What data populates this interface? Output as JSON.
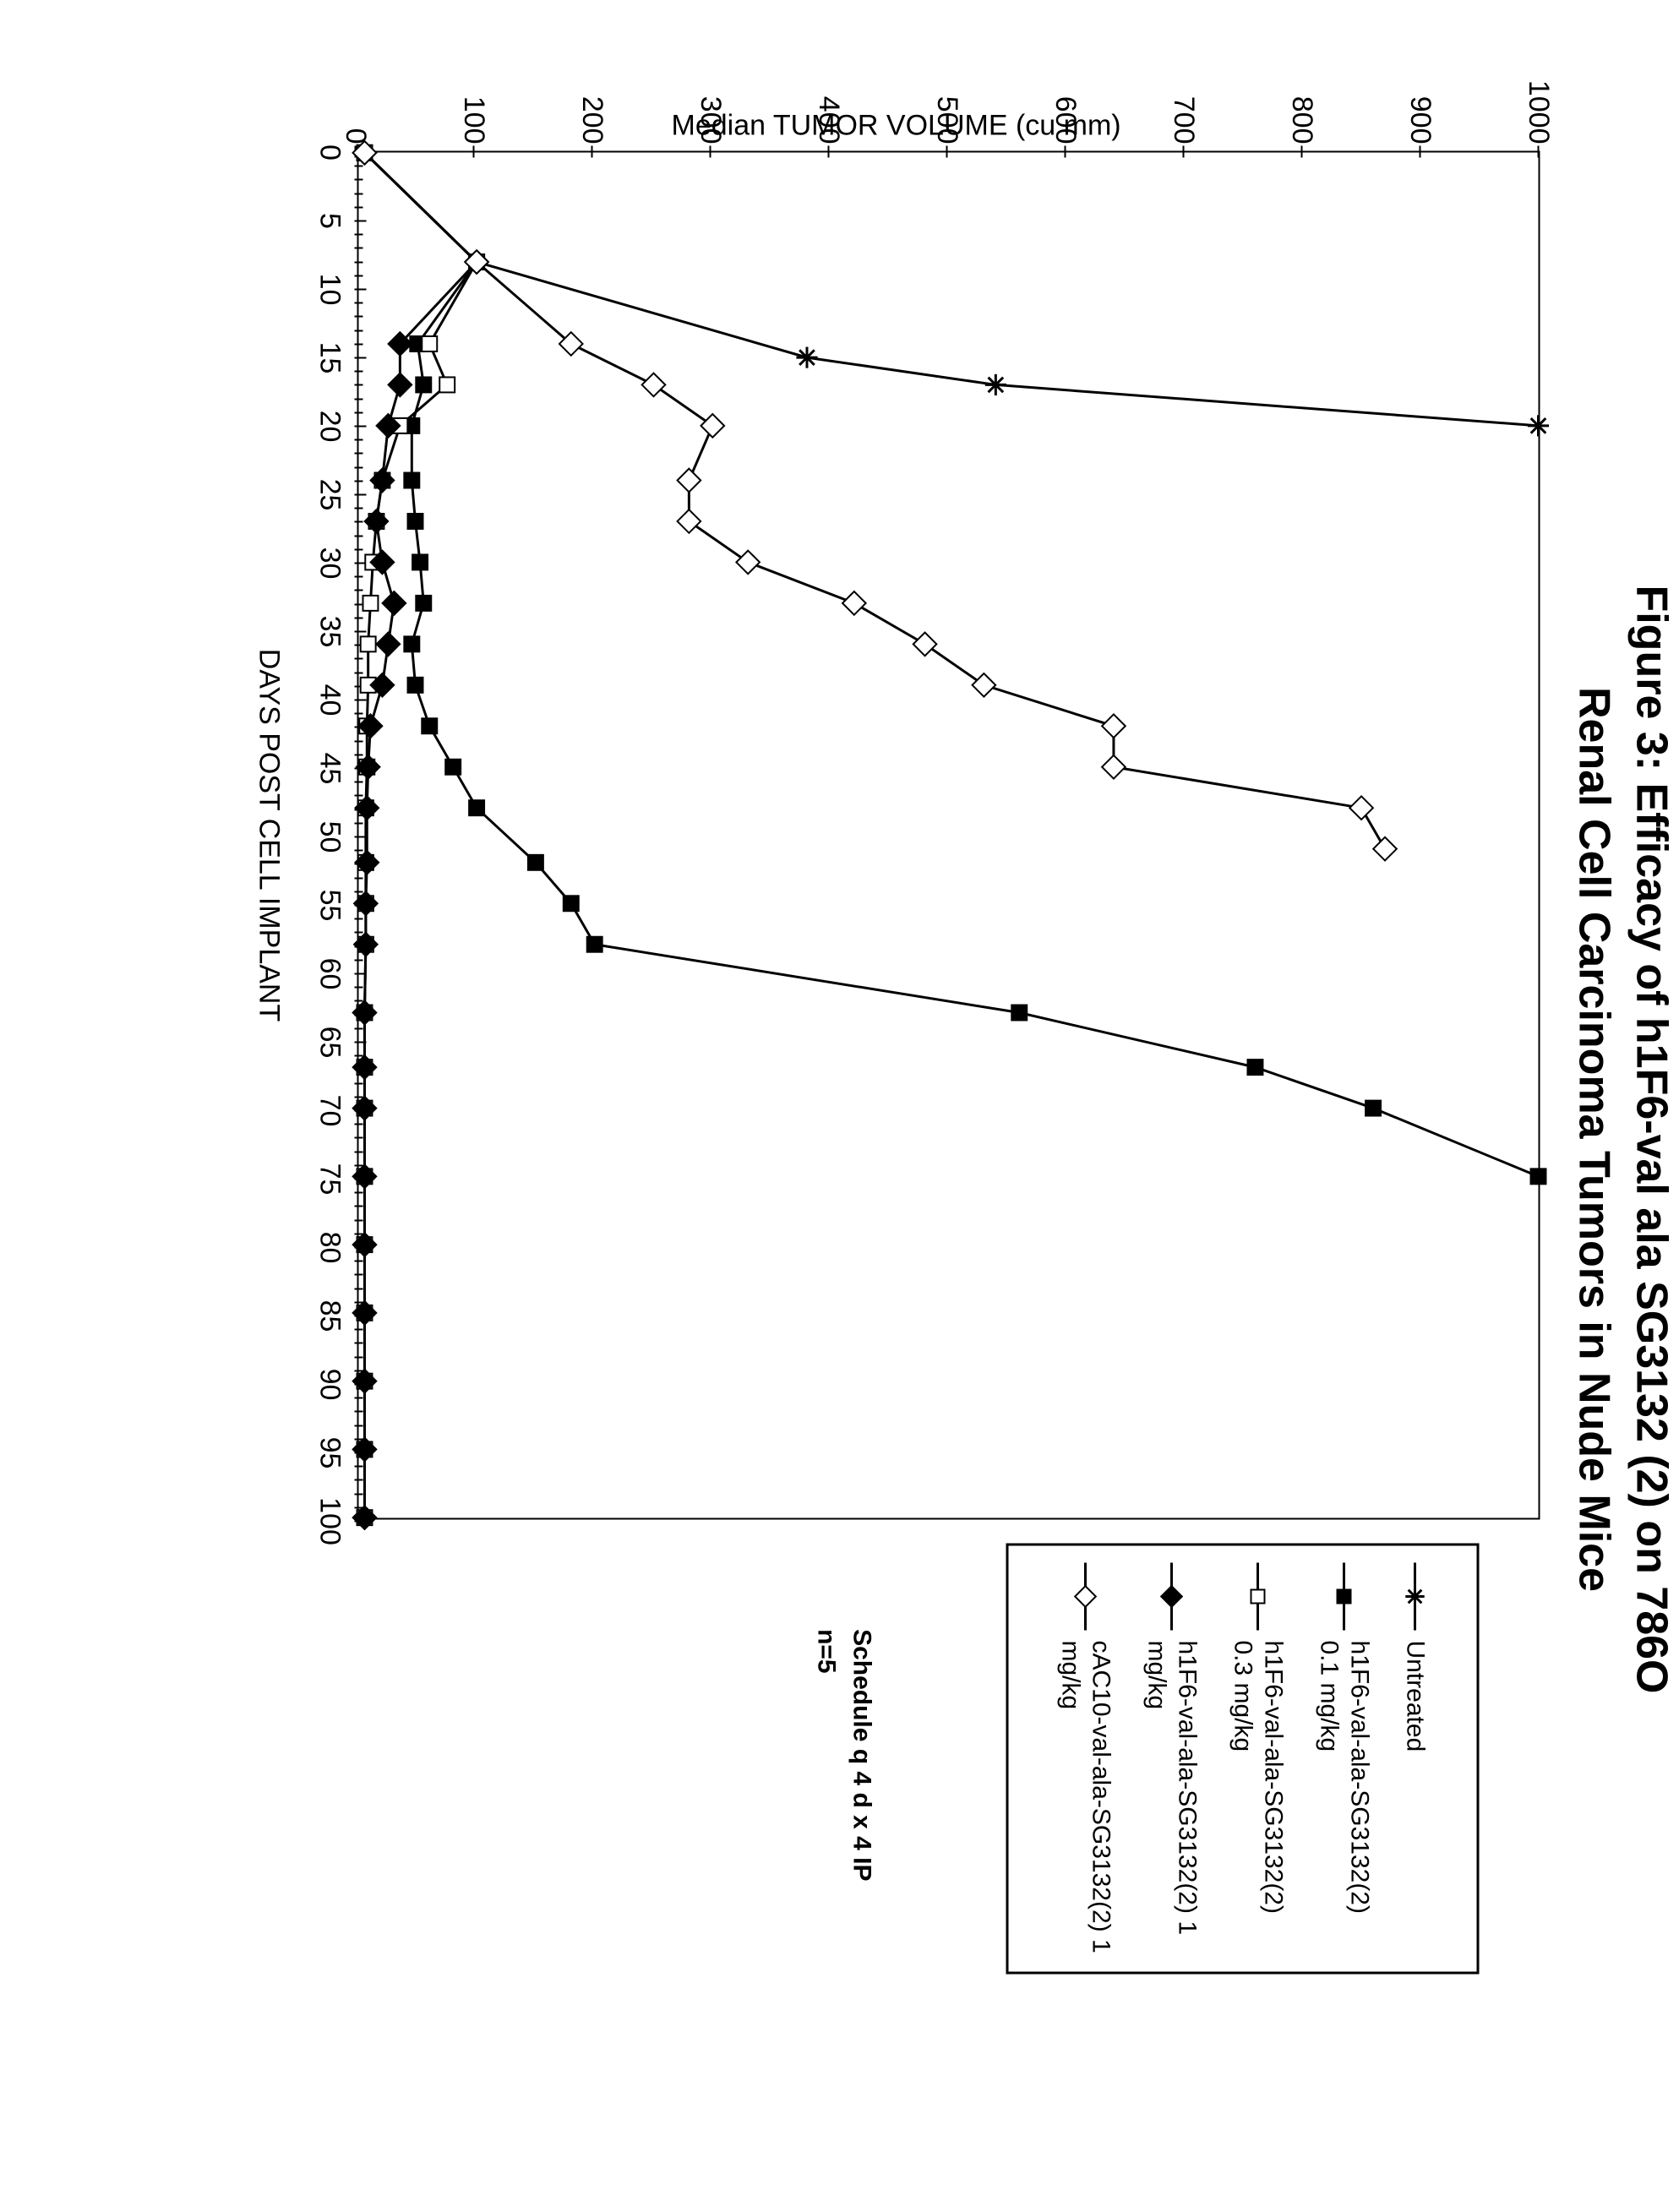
{
  "title_line1": "Figure 3: Efficacy of h1F6-val ala SG3132 (2)  on 786O",
  "title_line2": "Renal Cell Carcinoma Tumors in Nude Mice",
  "y_axis_label": "Median TUMOR VOLUME  (cu mm)",
  "x_axis_label": "DAYS POST CELL IMPLANT",
  "schedule_line1": "Schedule q 4 d x 4 IP",
  "schedule_line2": "n=5",
  "chart": {
    "type": "line",
    "xlim": [
      0,
      100
    ],
    "ylim": [
      0,
      1000
    ],
    "x_ticks": [
      0,
      5,
      10,
      15,
      20,
      25,
      30,
      35,
      40,
      45,
      50,
      55,
      60,
      65,
      70,
      75,
      80,
      85,
      90,
      95,
      100
    ],
    "y_ticks": [
      0,
      100,
      200,
      300,
      400,
      500,
      600,
      700,
      800,
      900,
      1000
    ],
    "y_tick_step": 100,
    "background_color": "#ffffff",
    "axis_color": "#000000",
    "line_width": 3,
    "marker_size": 18,
    "title_fontsize": 52,
    "label_fontsize": 34,
    "tick_fontsize": 34,
    "legend_fontsize": 30
  },
  "series": [
    {
      "id": "untreated",
      "label": "Untreated",
      "marker": "asterisk",
      "fill": "none",
      "color": "#000000",
      "x": [
        0,
        8,
        15,
        17,
        20
      ],
      "y": [
        5,
        100,
        380,
        540,
        1000
      ]
    },
    {
      "id": "h1f6_01",
      "label": "h1F6-val-ala-SG3132(2) 0.1 mg/kg",
      "marker": "square",
      "fill": "#000000",
      "color": "#000000",
      "x": [
        0,
        8,
        14,
        17,
        20,
        24,
        27,
        30,
        33,
        36,
        39,
        42,
        45,
        48,
        52,
        55,
        58,
        63,
        67,
        70,
        75
      ],
      "y": [
        5,
        100,
        50,
        55,
        45,
        45,
        48,
        52,
        55,
        45,
        48,
        60,
        80,
        100,
        150,
        180,
        200,
        560,
        760,
        860,
        1000
      ]
    },
    {
      "id": "h1f6_03",
      "label": "h1F6-val-ala-SG3132(2) 0.3 mg/kg",
      "marker": "square",
      "fill": "#ffffff",
      "color": "#000000",
      "x": [
        0,
        8,
        14,
        17,
        20,
        24,
        27,
        30,
        33,
        36,
        39,
        42,
        45,
        48,
        52,
        55,
        58,
        63,
        67,
        70,
        75,
        80,
        85,
        90,
        95,
        100
      ],
      "y": [
        5,
        100,
        60,
        75,
        35,
        20,
        15,
        12,
        10,
        8,
        8,
        7,
        7,
        6,
        6,
        6,
        6,
        5,
        5,
        5,
        5,
        5,
        5,
        5,
        5,
        5
      ]
    },
    {
      "id": "h1f6_1",
      "label": "h1F6-val-ala-SG3132(2) 1 mg/kg",
      "marker": "diamond",
      "fill": "#000000",
      "color": "#000000",
      "x": [
        0,
        8,
        14,
        17,
        20,
        24,
        27,
        30,
        33,
        36,
        39,
        42,
        45,
        48,
        52,
        55,
        58,
        63,
        67,
        70,
        75,
        80,
        85,
        90,
        95,
        100
      ],
      "y": [
        5,
        100,
        35,
        35,
        25,
        20,
        15,
        20,
        30,
        25,
        20,
        10,
        8,
        7,
        7,
        6,
        6,
        5,
        5,
        5,
        5,
        5,
        5,
        5,
        5,
        5
      ]
    },
    {
      "id": "cac10_1",
      "label": "cAC10-val-ala-SG3132(2) 1 mg/kg",
      "marker": "diamond",
      "fill": "#ffffff",
      "color": "#000000",
      "x": [
        0,
        8,
        14,
        17,
        20,
        24,
        27,
        30,
        33,
        36,
        39,
        42,
        45,
        48,
        51
      ],
      "y": [
        5,
        100,
        180,
        250,
        300,
        280,
        280,
        330,
        420,
        480,
        530,
        640,
        640,
        850,
        870
      ]
    }
  ]
}
